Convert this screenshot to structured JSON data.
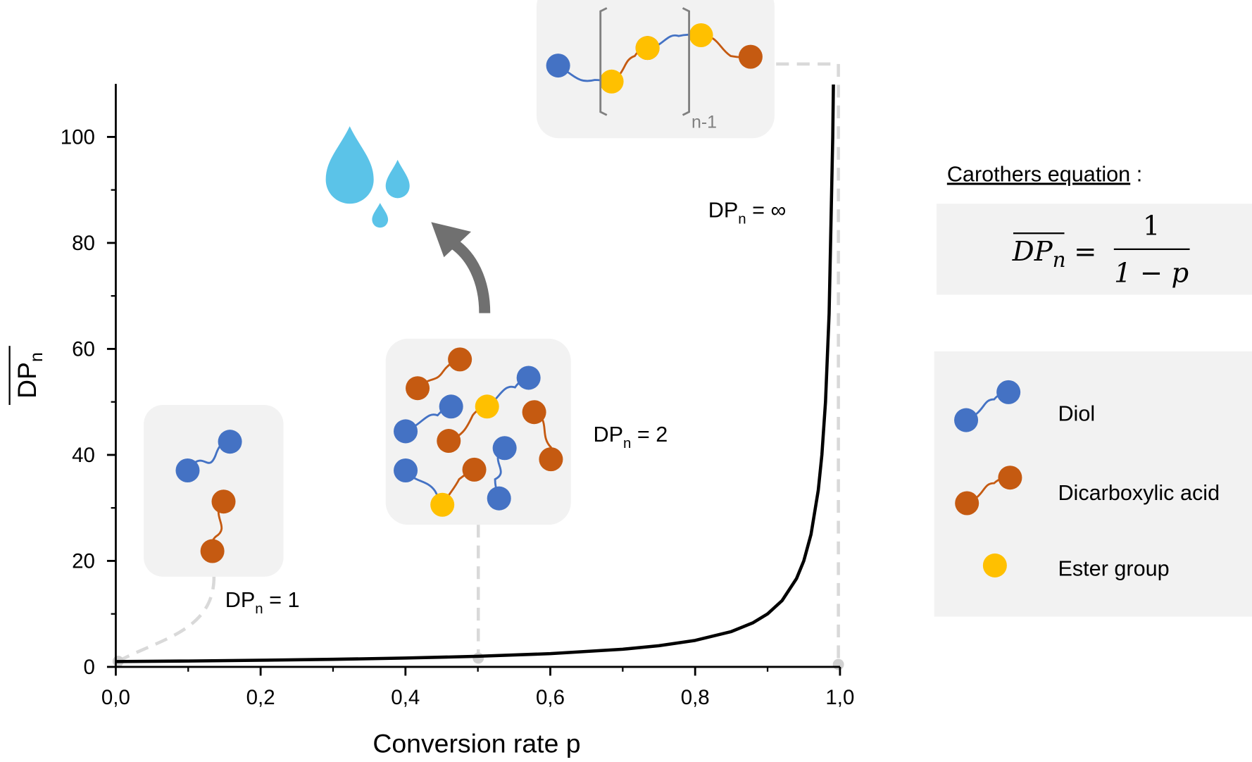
{
  "chart_data": {
    "type": "line",
    "xlabel": "Conversion rate p",
    "ylabel": {
      "main": "DP",
      "sub": "n"
    },
    "xlim": [
      0,
      1
    ],
    "ylim": [
      0,
      110
    ],
    "xticks": [
      {
        "value": 0,
        "label": "0,0"
      },
      {
        "value": 0.2,
        "label": "0,2"
      },
      {
        "value": 0.4,
        "label": "0,4"
      },
      {
        "value": 0.6,
        "label": "0,6"
      },
      {
        "value": 0.8,
        "label": "0,8"
      },
      {
        "value": 1,
        "label": "1,0"
      }
    ],
    "xticks_minor": [
      0.1,
      0.3,
      0.5,
      0.7,
      0.9
    ],
    "yticks": [
      0,
      20,
      40,
      60,
      80,
      100
    ],
    "yticks_minor": [
      10,
      30,
      50,
      70,
      90
    ],
    "x": [
      0,
      0.1,
      0.2,
      0.3,
      0.4,
      0.5,
      0.6,
      0.7,
      0.75,
      0.8,
      0.85,
      0.88,
      0.9,
      0.92,
      0.94,
      0.95,
      0.96,
      0.97,
      0.975,
      0.98,
      0.985,
      0.99,
      0.9909
    ],
    "series": [
      {
        "color": "#000000",
        "values": [
          1,
          1.111,
          1.25,
          1.429,
          1.667,
          2,
          2.5,
          3.333,
          4,
          5,
          6.667,
          8.333,
          10,
          12.5,
          16.667,
          20,
          25,
          33.333,
          40,
          50,
          66.667,
          100,
          109.89
        ]
      }
    ],
    "annotations": [
      {
        "main": "DP",
        "sub": "n",
        "rest": " = 1"
      },
      {
        "main": "DP",
        "sub": "n",
        "rest": " = 2"
      },
      {
        "main": "DP",
        "sub": "n",
        "rest": " = ∞"
      }
    ],
    "polymer_label": "n-1",
    "equation": {
      "title": "Carothers equation",
      "title_suffix": " :",
      "lhs": "DP",
      "lhs_sub": "n",
      "equals": "=",
      "numerator": "1",
      "denominator": "1 − p"
    },
    "legend": [
      {
        "name": "Diol",
        "color": "#4472c4"
      },
      {
        "name": "Dicarboxylic acid",
        "color": "#c55a11"
      },
      {
        "name": "Ester group",
        "color": "#ffc000"
      }
    ]
  }
}
